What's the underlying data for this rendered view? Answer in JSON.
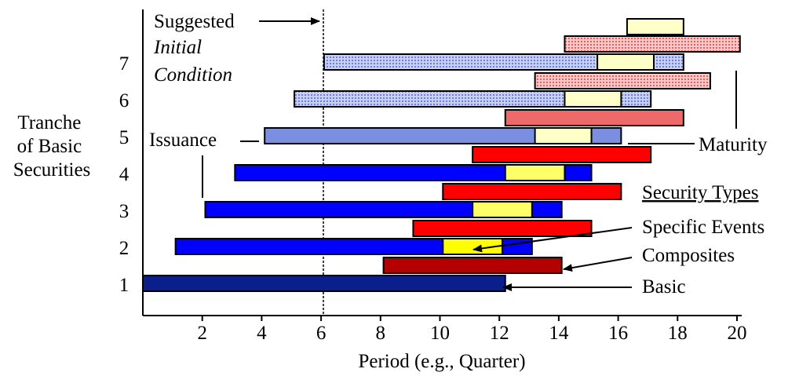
{
  "chart_data": {
    "type": "gantt",
    "ylabel": "Tranche of Basic Securities",
    "xlabel": "Period (e.g., Quarter)",
    "xlim": [
      0,
      20
    ],
    "x_ticks": [
      2,
      4,
      6,
      8,
      10,
      12,
      14,
      16,
      18,
      20
    ],
    "tranches": [
      {
        "tranche": 1,
        "basic": {
          "start": 0,
          "end": 12.2
        },
        "composite": {
          "start": 8.1,
          "end": 14.1
        },
        "specific_event": null
      },
      {
        "tranche": 2,
        "basic": {
          "start": 1.1,
          "end": 13.1
        },
        "composite": {
          "start": 9.1,
          "end": 15.1
        },
        "specific_event": {
          "start": 10.1,
          "end": 12.1
        }
      },
      {
        "tranche": 3,
        "basic": {
          "start": 2.1,
          "end": 14.1
        },
        "composite": {
          "start": 10.1,
          "end": 16.1
        },
        "specific_event": {
          "start": 11.1,
          "end": 13.1
        }
      },
      {
        "tranche": 4,
        "basic": {
          "start": 3.1,
          "end": 15.1
        },
        "composite": {
          "start": 11.1,
          "end": 17.1
        },
        "specific_event": {
          "start": 12.2,
          "end": 14.2
        }
      },
      {
        "tranche": 5,
        "basic": {
          "start": 4.1,
          "end": 16.1
        },
        "composite": {
          "start": 12.2,
          "end": 18.2
        },
        "specific_event": {
          "start": 13.2,
          "end": 15.1
        }
      },
      {
        "tranche": 6,
        "basic": {
          "start": 5.1,
          "end": 17.1
        },
        "composite": {
          "start": 13.2,
          "end": 19.1
        },
        "specific_event": {
          "start": 14.2,
          "end": 16.1
        }
      },
      {
        "tranche": 7,
        "basic": {
          "start": 6.1,
          "end": 18.2
        },
        "composite": {
          "start": 14.2,
          "end": 20.1
        },
        "specific_event": {
          "start": 15.3,
          "end": 17.2
        }
      }
    ],
    "extra_specific_event": {
      "start": 16.3,
      "end": 18.2
    },
    "solid_tranches": [
      1,
      2,
      3,
      4
    ],
    "shaded_tranches": [
      5,
      6,
      7
    ],
    "initial_condition_x": 6,
    "annotations": {
      "suggested": "Suggested",
      "initial": "Initial",
      "condition": "Condition",
      "issuance": "Issuance",
      "maturity": "Maturity",
      "security_types": "Security Types",
      "specific_events": "Specific Events",
      "composites": "Composites",
      "basic": "Basic"
    },
    "colors": {
      "basic_dark": "#0a1f8c",
      "basic_blue": "#0000ff",
      "basic_shaded": "#7b8fe0",
      "basic_light": "#ccd2f2",
      "composite_dark": "#b30000",
      "composite_red": "#ff0000",
      "composite_shaded": "#ee6a6a",
      "composite_light": "#f7c8c8",
      "event_yellow": "#ffff00",
      "event_light": "#ffff66",
      "event_pale": "#ffffc8"
    }
  }
}
